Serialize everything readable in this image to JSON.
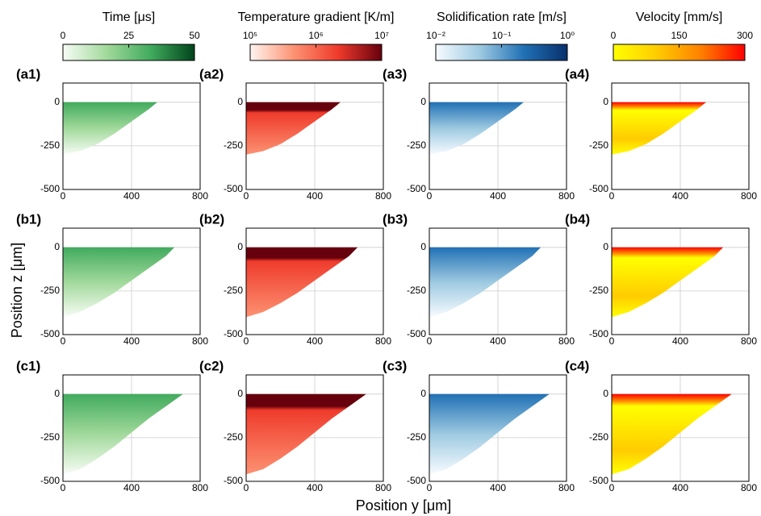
{
  "chart_data": {
    "type": "heatmap",
    "xlabel": "Position y [μm]",
    "ylabel": "Position z [μm]",
    "xlim": [
      0,
      800
    ],
    "ylim": [
      -500,
      110
    ],
    "xticks": [
      0,
      400,
      800
    ],
    "yticks": [
      0,
      -250,
      -500
    ],
    "grid": true,
    "colorbars": [
      {
        "title": "Time [μs]",
        "colors": [
          "#f7fcf5",
          "#a1d99b",
          "#41ab5d",
          "#00441b"
        ],
        "lim": [
          0,
          50
        ],
        "log": false,
        "ticks": [
          0,
          25,
          50
        ]
      },
      {
        "title": "Temperature gradient [K/m]",
        "colors": [
          "#fff5f0",
          "#fc9272",
          "#ef3b2c",
          "#67000d"
        ],
        "lim": [
          100000,
          10000000
        ],
        "log": true,
        "ticks": [
          {
            "value": 100000,
            "label": "10⁵"
          },
          {
            "value": 1000000,
            "label": "10⁶"
          },
          {
            "value": 10000000,
            "label": "10⁷"
          }
        ]
      },
      {
        "title": "Solidification rate [m/s]",
        "colors": [
          "#f7fbff",
          "#9ecae1",
          "#2171b5",
          "#08306b"
        ],
        "lim": [
          0.01,
          1
        ],
        "log": true,
        "ticks": [
          {
            "value": 0.01,
            "label": "10⁻²"
          },
          {
            "value": 0.1,
            "label": "10⁻¹"
          },
          {
            "value": 1,
            "label": "10⁰"
          }
        ]
      },
      {
        "title": "Velocity [mm/s]",
        "colors": [
          "#ffff00",
          "#ffcc00",
          "#ff8000",
          "#ff0000"
        ],
        "lim": [
          0,
          300
        ],
        "log": false,
        "ticks": [
          0,
          150,
          300
        ]
      }
    ],
    "rows": [
      {
        "labels": [
          "(a1)",
          "(a2)",
          "(a3)",
          "(a4)"
        ],
        "x": [
          0,
          100,
          200,
          300,
          400,
          500,
          550
        ],
        "depth": [
          -300,
          -280,
          -240,
          -180,
          -110,
          -40,
          0
        ]
      },
      {
        "labels": [
          "(b1)",
          "(b2)",
          "(b3)",
          "(b4)"
        ],
        "x": [
          0,
          100,
          200,
          300,
          400,
          500,
          600,
          650
        ],
        "depth": [
          -400,
          -370,
          -320,
          -260,
          -190,
          -120,
          -50,
          0
        ]
      },
      {
        "labels": [
          "(c1)",
          "(c2)",
          "(c3)",
          "(c4)"
        ],
        "x": [
          0,
          100,
          200,
          300,
          400,
          500,
          600,
          700
        ],
        "depth": [
          -460,
          -430,
          -370,
          -300,
          -220,
          -140,
          -70,
          0
        ]
      }
    ]
  }
}
